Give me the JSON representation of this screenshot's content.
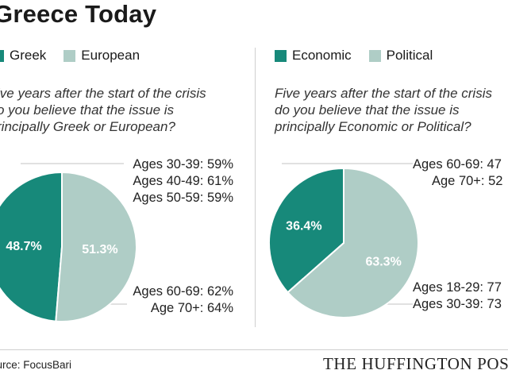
{
  "title": "Greece Today",
  "source": "ource: FocusBari",
  "brand": "THE HUFFINGTON POS",
  "colors": {
    "dark": "#17897a",
    "light": "#afcdc6",
    "line": "#cfcfcf"
  },
  "left": {
    "legend": [
      "Greek",
      "European"
    ],
    "question": [
      "ive years after the start of the crisis",
      "o you believe that the issue is",
      "rincipally Greek or European?"
    ],
    "ages_top": [
      "Ages 30-39: 59%",
      "Ages 40-49: 61%",
      "Ages 50-59: 59%"
    ],
    "ages_bottom": [
      "Ages 60-69: 62%",
      "Age 70+: 64%"
    ]
  },
  "right": {
    "legend": [
      "Economic",
      "Political"
    ],
    "question": [
      "Five years after the start of the crisis",
      "do you believe that the issue is",
      "principally Economic or Political?"
    ],
    "ages_top": [
      "Ages 60-69: 47",
      "Age 70+: 52"
    ],
    "ages_bottom": [
      "Ages 18-29: 77",
      "Ages 30-39: 73"
    ]
  },
  "chart_data": [
    {
      "type": "pie",
      "title": "Five years after the start of the crisis do you believe that the issue is principally Greek or European?",
      "categories": [
        "Greek",
        "European"
      ],
      "values": [
        48.7,
        51.3
      ],
      "labels": [
        "48.7%",
        "51.3%"
      ],
      "colors": [
        "#17897a",
        "#afcdc6"
      ],
      "legend": "top"
    },
    {
      "type": "pie",
      "title": "Five years after the start of the crisis do you believe that the issue is principally Economic or Political?",
      "categories": [
        "Economic",
        "Political"
      ],
      "values": [
        36.4,
        63.3
      ],
      "labels": [
        "36.4%",
        "63.3%"
      ],
      "colors": [
        "#17897a",
        "#afcdc6"
      ],
      "legend": "top"
    }
  ]
}
